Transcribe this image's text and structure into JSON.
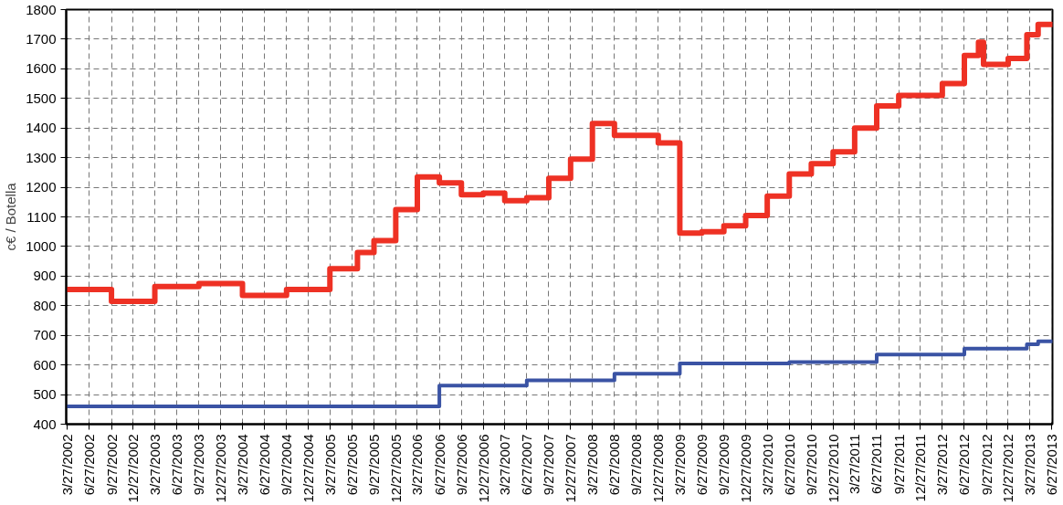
{
  "chart_data": {
    "type": "step",
    "ylabel": "c€ / Botella",
    "xlim": [
      "2002-03-22",
      "2013-06-30"
    ],
    "ylim": [
      400,
      1800
    ],
    "yticks": [
      400,
      500,
      600,
      700,
      800,
      900,
      1000,
      1100,
      1200,
      1300,
      1400,
      1500,
      1600,
      1700,
      1800
    ],
    "xticks": [
      {
        "value": "2002-03-27",
        "label": "3/27/2002"
      },
      {
        "value": "2002-06-27",
        "label": "6/27/2002"
      },
      {
        "value": "2002-09-27",
        "label": "9/27/2002"
      },
      {
        "value": "2002-12-27",
        "label": "12/27/2002"
      },
      {
        "value": "2003-03-27",
        "label": "3/27/2003"
      },
      {
        "value": "2003-06-27",
        "label": "6/27/2003"
      },
      {
        "value": "2003-09-27",
        "label": "9/27/2003"
      },
      {
        "value": "2003-12-27",
        "label": "12/27/2003"
      },
      {
        "value": "2004-03-27",
        "label": "3/27/2004"
      },
      {
        "value": "2004-06-27",
        "label": "6/27/2004"
      },
      {
        "value": "2004-09-27",
        "label": "9/27/2004"
      },
      {
        "value": "2004-12-27",
        "label": "12/27/2004"
      },
      {
        "value": "2005-03-27",
        "label": "3/27/2005"
      },
      {
        "value": "2005-06-27",
        "label": "6/27/2005"
      },
      {
        "value": "2005-09-27",
        "label": "9/27/2005"
      },
      {
        "value": "2005-12-27",
        "label": "12/27/2005"
      },
      {
        "value": "2006-03-27",
        "label": "3/27/2006"
      },
      {
        "value": "2006-06-27",
        "label": "6/27/2006"
      },
      {
        "value": "2006-09-27",
        "label": "9/27/2006"
      },
      {
        "value": "2006-12-27",
        "label": "12/27/2006"
      },
      {
        "value": "2007-03-27",
        "label": "3/27/2007"
      },
      {
        "value": "2007-06-27",
        "label": "6/27/2007"
      },
      {
        "value": "2007-09-27",
        "label": "9/27/2007"
      },
      {
        "value": "2007-12-27",
        "label": "12/27/2007"
      },
      {
        "value": "2008-03-27",
        "label": "3/27/2008"
      },
      {
        "value": "2008-06-27",
        "label": "6/27/2008"
      },
      {
        "value": "2008-09-27",
        "label": "9/27/2008"
      },
      {
        "value": "2008-12-27",
        "label": "12/27/2008"
      },
      {
        "value": "2009-03-27",
        "label": "3/27/2009"
      },
      {
        "value": "2009-06-27",
        "label": "6/27/2009"
      },
      {
        "value": "2009-09-27",
        "label": "9/27/2009"
      },
      {
        "value": "2009-12-27",
        "label": "12/27/2009"
      },
      {
        "value": "2010-03-27",
        "label": "3/27/2010"
      },
      {
        "value": "2010-06-27",
        "label": "6/27/2010"
      },
      {
        "value": "2010-09-27",
        "label": "9/27/2010"
      },
      {
        "value": "2010-12-27",
        "label": "12/27/2010"
      },
      {
        "value": "2011-03-27",
        "label": "3/27/2011"
      },
      {
        "value": "2011-06-27",
        "label": "6/27/2011"
      },
      {
        "value": "2011-09-27",
        "label": "9/27/2011"
      },
      {
        "value": "2011-12-27",
        "label": "12/27/2011"
      },
      {
        "value": "2012-03-27",
        "label": "3/27/2012"
      },
      {
        "value": "2012-06-27",
        "label": "6/27/2012"
      },
      {
        "value": "2012-09-27",
        "label": "9/27/2012"
      },
      {
        "value": "2012-12-27",
        "label": "12/27/2012"
      },
      {
        "value": "2013-03-27",
        "label": "3/27/2013"
      },
      {
        "value": "2013-06-27",
        "label": "6/27/2013"
      }
    ],
    "grid": true,
    "line_style": "solid",
    "series": [
      {
        "color": "#ee3124",
        "x": [
          "2002-03-27",
          "2002-09-27",
          "2003-03-27",
          "2003-09-27",
          "2004-03-27",
          "2004-09-27",
          "2005-03-27",
          "2005-07-20",
          "2005-09-27",
          "2005-12-27",
          "2006-03-27",
          "2006-06-27",
          "2006-09-27",
          "2006-12-27",
          "2007-03-27",
          "2007-06-27",
          "2007-09-27",
          "2007-12-27",
          "2008-03-27",
          "2008-06-27",
          "2008-12-27",
          "2009-03-27",
          "2009-06-27",
          "2009-09-27",
          "2009-12-27",
          "2010-03-27",
          "2010-06-27",
          "2010-09-27",
          "2010-12-27",
          "2011-03-27",
          "2011-06-27",
          "2011-09-27",
          "2012-03-27",
          "2012-06-27",
          "2012-08-25",
          "2012-09-15",
          "2012-12-27",
          "2013-03-15",
          "2013-05-01",
          "2013-06-27"
        ],
        "values": [
          855,
          815,
          865,
          875,
          835,
          855,
          925,
          980,
          1020,
          1125,
          1235,
          1215,
          1175,
          1180,
          1155,
          1165,
          1230,
          1295,
          1415,
          1375,
          1350,
          1045,
          1050,
          1070,
          1105,
          1170,
          1245,
          1280,
          1320,
          1400,
          1475,
          1510,
          1550,
          1645,
          1690,
          1615,
          1635,
          1715,
          1750,
          1750
        ]
      },
      {
        "color": "#3a53a4",
        "x": [
          "2002-03-27",
          "2006-06-27",
          "2007-06-27",
          "2008-06-27",
          "2009-03-27",
          "2010-06-27",
          "2011-06-27",
          "2012-06-27",
          "2013-03-15",
          "2013-05-01",
          "2013-06-27"
        ],
        "values": [
          460,
          530,
          548,
          570,
          605,
          610,
          635,
          655,
          670,
          680,
          680
        ]
      }
    ]
  }
}
